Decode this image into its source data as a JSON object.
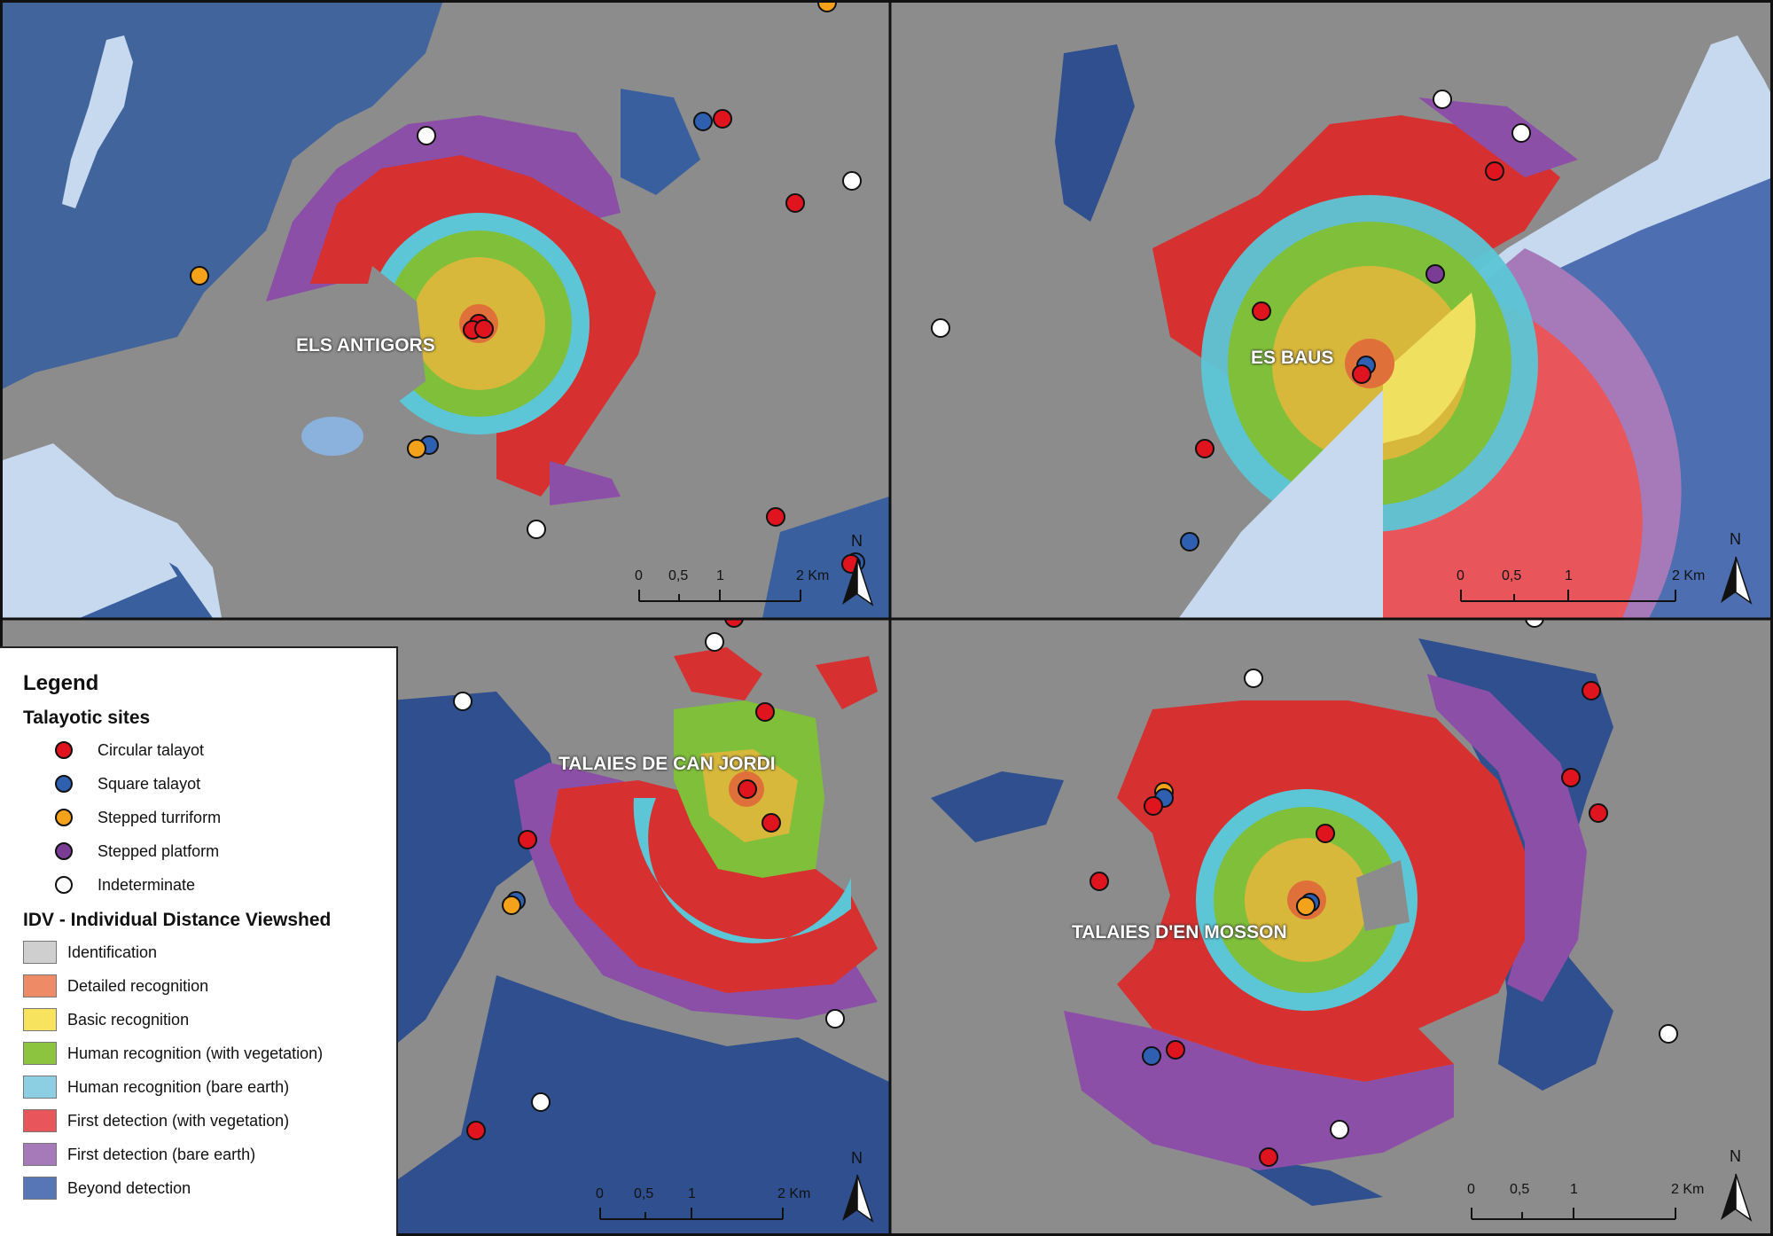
{
  "legend": {
    "title": "Legend",
    "sites_heading": "Talayotic sites",
    "site_types": [
      {
        "label": "Circular talayot",
        "color": "#e0141e"
      },
      {
        "label": "Square talayot",
        "color": "#2f5fb0"
      },
      {
        "label": "Stepped turriform",
        "color": "#f5a21b"
      },
      {
        "label": "Stepped platform",
        "color": "#7a3c95"
      },
      {
        "label": "Indeterminate",
        "color": "#ffffff"
      }
    ],
    "idv_heading": "IDV - Individual Distance Viewshed",
    "idv_classes": [
      {
        "label": "Identification",
        "color": "#cfcfcf"
      },
      {
        "label": "Detailed recognition",
        "color": "#ef8a66"
      },
      {
        "label": "Basic recognition",
        "color": "#f7e35e"
      },
      {
        "label": "Human recognition (with vegetation)",
        "color": "#8cc43f"
      },
      {
        "label": "Human recognition (bare earth)",
        "color": "#8ccfe3"
      },
      {
        "label": "First detection (with vegetation)",
        "color": "#e8555a"
      },
      {
        "label": "First detection (bare earth)",
        "color": "#a67ab8"
      },
      {
        "label": "Beyond detection",
        "color": "#5676b5"
      }
    ]
  },
  "panels": [
    {
      "site_name": "ELS ANTIGORS",
      "scale": {
        "labels": [
          "0",
          "0,5",
          "1",
          "2 Km"
        ]
      },
      "north": "N"
    },
    {
      "site_name": "ES BAUS",
      "scale": {
        "labels": [
          "0",
          "0,5",
          "1",
          "2 Km"
        ]
      },
      "north": "N"
    },
    {
      "site_name": "TALAIES DE CAN JORDI",
      "scale": {
        "labels": [
          "0",
          "0,5",
          "1",
          "2 Km"
        ]
      },
      "north": "N"
    },
    {
      "site_name": "TALAIES D'EN MOSSON",
      "scale": {
        "labels": [
          "0",
          "0,5",
          "1",
          "2 Km"
        ]
      },
      "north": "N"
    }
  ],
  "colors": {
    "terrain": "#8a8a8a",
    "sea": "#c9dcef",
    "beyond": "#3a5a9a",
    "ring_orange": "#e0703a",
    "ring_yellow": "#d8b83a",
    "ring_green": "#7fbf3a",
    "ring_cyan": "#5cc6d6",
    "ring_red": "#d63030",
    "ring_purple": "#8c4fa8"
  }
}
